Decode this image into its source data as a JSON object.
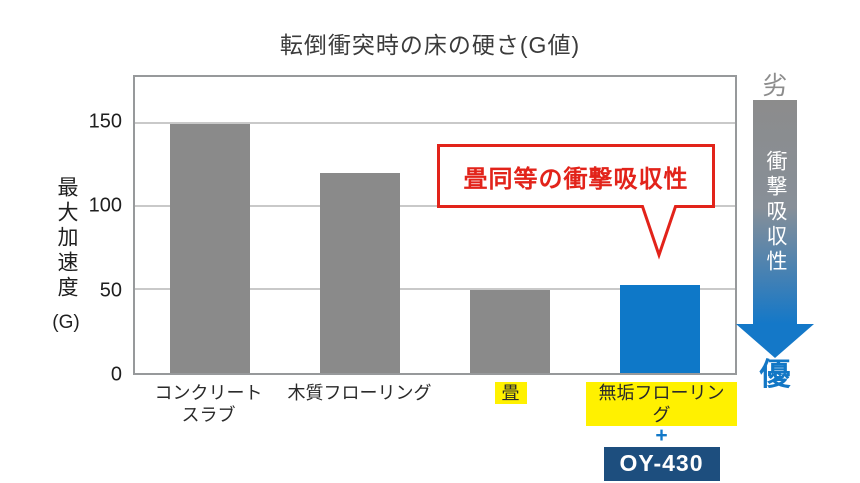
{
  "title": "転倒衝突時の床の硬さ(G値)",
  "chart_data": {
    "type": "bar",
    "title": "転倒衝突時の床の硬さ(G値)",
    "categories": [
      "コンクリートスラブ",
      "木質フローリング",
      "畳",
      "無垢フローリング+OY-430"
    ],
    "values": [
      150,
      120,
      50,
      53
    ],
    "xlabel": "",
    "ylabel": "最大加速度(G)",
    "ylim": [
      0,
      178
    ],
    "yticks": [
      0,
      50,
      100,
      150
    ],
    "bar_colors": [
      "#8a8a8a",
      "#8a8a8a",
      "#8a8a8a",
      "#0e78c8"
    ],
    "grid": "horizontal",
    "legend": "none"
  },
  "y_axis": {
    "label_vertical": "最大加速度",
    "label_unit": "(G)"
  },
  "x_axis": {
    "labels": [
      {
        "text": "コンクリート\nスラブ",
        "highlighted": false
      },
      {
        "text": "木質フローリング",
        "highlighted": false
      },
      {
        "text": "畳",
        "highlighted": true
      },
      {
        "text": "無垢フローリング",
        "highlighted": true
      }
    ],
    "plus_sign": "+",
    "product_badge": "OY-430"
  },
  "annotation": {
    "callout_text": "畳同等の衝撃吸収性"
  },
  "scale_arrow": {
    "top_label": "劣",
    "arrow_text": "衝撃吸収性",
    "bottom_label": "優"
  },
  "colors": {
    "bar_gray": "#8a8a8a",
    "bar_blue": "#0e78c8",
    "badge_navy": "#1d4e7e",
    "highlight_yellow": "#fff100",
    "callout_red": "#e2231a",
    "scale_gray": "#8c8c8c",
    "scale_blue": "#1478c8"
  }
}
